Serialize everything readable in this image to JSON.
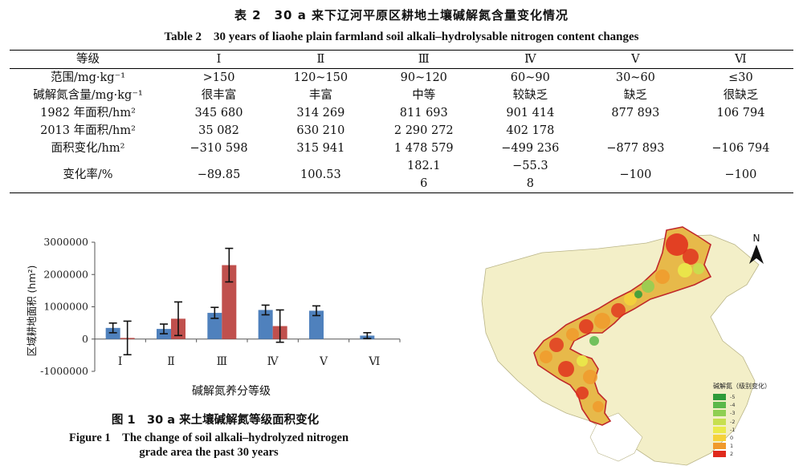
{
  "table_title_zh": "表 2　30 a 来下辽河平原区耕地土壤碱解氮含量变化情况",
  "table_title_en": "Table 2　30 years of liaohe plain farmland soil alkali–hydrolysable nitrogen content changes",
  "table": {
    "header": [
      "等级",
      "Ⅰ",
      "Ⅱ",
      "Ⅲ",
      "Ⅳ",
      "Ⅴ",
      "Ⅵ"
    ],
    "rows": [
      [
        "范围/mg·kg⁻¹",
        ">150",
        "120~150",
        "90~120",
        "60~90",
        "30~60",
        "≤30"
      ],
      [
        "碱解氮含量/mg·kg⁻¹",
        "很丰富",
        "丰富",
        "中等",
        "较缺乏",
        "缺乏",
        "很缺乏"
      ],
      [
        "1982 年面积/hm²",
        "345 680",
        "314 269",
        "811 693",
        "901 414",
        "877 893",
        "106 794"
      ],
      [
        "2013 年面积/hm²",
        "35 082",
        "630 210",
        "2 290 272",
        "402 178",
        "",
        ""
      ],
      [
        "面积变化/hm²",
        "−310 598",
        "315 941",
        "1 478 579",
        "−499 236",
        "−877 893",
        "−106 794"
      ]
    ],
    "last_row": {
      "label": "变化率/%",
      "c1": "−89.85",
      "c2": "100.53",
      "c3_line1": "182.1",
      "c3_line2": "6",
      "c4_line1": "−55.3",
      "c4_line2": "8",
      "c5": "−100",
      "c6": "−100"
    }
  },
  "chart_data": {
    "type": "bar",
    "categories": [
      "Ⅰ",
      "Ⅱ",
      "Ⅲ",
      "Ⅳ",
      "Ⅴ",
      "Ⅵ"
    ],
    "series": [
      {
        "color": "#4f81bd",
        "values": [
          345680,
          314269,
          811693,
          901414,
          877893,
          106794
        ],
        "err": [
          150000,
          150000,
          170000,
          150000,
          150000,
          90000
        ]
      },
      {
        "color": "#c0504d",
        "values": [
          35082,
          630210,
          2290272,
          402178,
          null,
          null
        ],
        "err": [
          520000,
          520000,
          520000,
          500000,
          null,
          null
        ]
      }
    ],
    "ytick_labels": [
      "3000000",
      "2000000",
      "1000000",
      "0",
      "-1000000"
    ],
    "ytick_values": [
      3000000,
      2000000,
      1000000,
      0,
      -1000000
    ],
    "ylim": [
      -1000000,
      3000000
    ],
    "xlabel": "碱解氮养分等级",
    "ylabel": "区域耕地面积 (hm²)"
  },
  "figure_caption_zh": "图 1　30 a 来土壤碱解氮等级面积变化",
  "figure_caption_en_line1": "Figure 1　The change of soil alkali–hydrolyzed nitrogen",
  "figure_caption_en_line2": "grade area the past 30 years",
  "map": {
    "north_label": "N",
    "legend_title": "碱解氮（级别变化）",
    "legend": [
      {
        "label": "-5",
        "color": "#2e9b3a"
      },
      {
        "label": "-4",
        "color": "#5bb84a"
      },
      {
        "label": "-3",
        "color": "#8fcf52"
      },
      {
        "label": "-2",
        "color": "#c6df4f"
      },
      {
        "label": "-1",
        "color": "#eaea4a"
      },
      {
        "label": "0",
        "color": "#f5d23a"
      },
      {
        "label": "1",
        "color": "#f09a2c"
      },
      {
        "label": "2",
        "color": "#e02a1c"
      }
    ]
  }
}
